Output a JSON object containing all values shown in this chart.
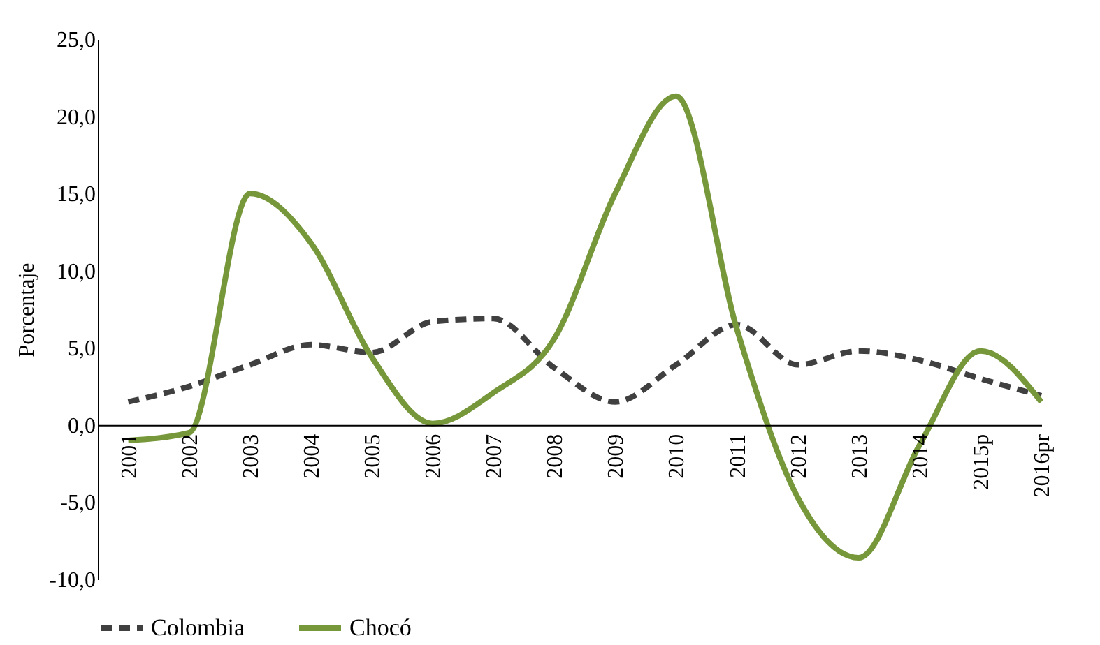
{
  "chart_data": {
    "type": "line",
    "ylabel": "Porcentaje",
    "categories": [
      "2001",
      "2002",
      "2003",
      "2004",
      "2005",
      "2006",
      "2007",
      "2008",
      "2009",
      "2010",
      "2011",
      "2012",
      "2013",
      "2014",
      "2015p",
      "2016pr"
    ],
    "series": [
      {
        "name": "Colombia",
        "color": "#404040",
        "line_style": "dashed",
        "values": [
          1.5,
          2.5,
          3.9,
          5.2,
          4.7,
          6.7,
          6.9,
          3.7,
          1.5,
          3.9,
          6.5,
          3.9,
          4.8,
          4.2,
          3.0,
          1.9
        ]
      },
      {
        "name": "Chocó",
        "color": "#77983a",
        "line_style": "solid",
        "values": [
          -1.0,
          -0.5,
          15.0,
          11.8,
          4.4,
          0.1,
          2.1,
          5.6,
          15.0,
          21.3,
          6.2,
          -4.7,
          -8.6,
          -1.3,
          4.8,
          1.5
        ]
      }
    ],
    "ylim": [
      -10,
      25
    ],
    "yticks": [
      {
        "value": -10,
        "label": "-10,0"
      },
      {
        "value": -5,
        "label": "-5,0"
      },
      {
        "value": 0,
        "label": "0,0"
      },
      {
        "value": 5,
        "label": "5,0"
      },
      {
        "value": 10,
        "label": "10,0"
      },
      {
        "value": 15,
        "label": "15,0"
      },
      {
        "value": 20,
        "label": "20,0"
      },
      {
        "value": 25,
        "label": "25,0"
      }
    ],
    "grid": false,
    "legend": "bottom",
    "marker": "none"
  }
}
